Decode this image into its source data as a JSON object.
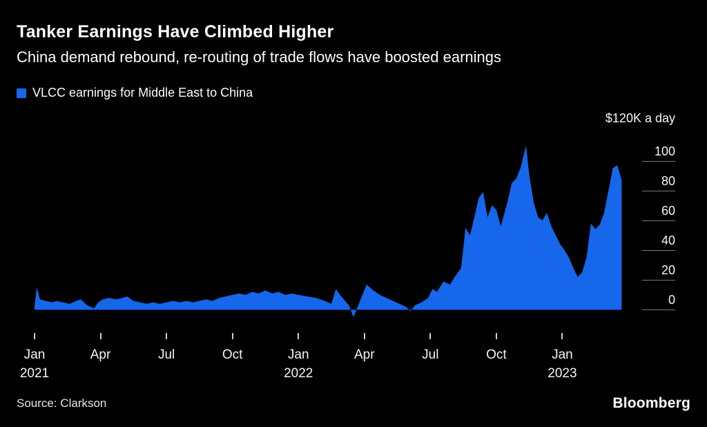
{
  "colors": {
    "background": "#000000",
    "accent": "#1667EB",
    "text": "#FFFFFF",
    "axis_text": "#F5F5F5",
    "grid": "#7A7A7A"
  },
  "header": {
    "title": "Tanker Earnings Have Climbed Higher",
    "subtitle": "China demand rebound, re-routing of trade flows have boosted earnings"
  },
  "legend": {
    "label": "VLCC earnings for Middle East to China"
  },
  "footer": {
    "source": "Source: Clarkson",
    "brand": "Bloomberg"
  },
  "chart_data": {
    "type": "area",
    "title": "Tanker Earnings Have Climbed Higher",
    "subtitle": "China demand rebound, re-routing of trade flows have boosted earnings",
    "series_name": "VLCC earnings for Middle East to China",
    "unit": "thousand USD per day",
    "y_axis": {
      "top_label": "$120K a day",
      "ticks": [
        100,
        80,
        60,
        40,
        20,
        0
      ],
      "range": [
        -10,
        122
      ],
      "grid": "right-segments-only"
    },
    "x_axis": {
      "range": [
        0,
        27
      ],
      "tick_months": [
        0,
        3,
        6,
        9,
        12,
        15,
        18,
        21,
        24
      ],
      "tick_labels": [
        [
          "Jan",
          "2021"
        ],
        [
          "Apr"
        ],
        [
          "Jul"
        ],
        [
          "Oct"
        ],
        [
          "Jan",
          "2022"
        ],
        [
          "Apr"
        ],
        [
          "Jul"
        ],
        [
          "Oct"
        ],
        [
          "Jan",
          "2023"
        ]
      ]
    },
    "points_note": "t = months since Jan 2021, v = VLCC earnings in $K/day",
    "points": [
      [
        0,
        2
      ],
      [
        0.1,
        15
      ],
      [
        0.25,
        7
      ],
      [
        0.5,
        6
      ],
      [
        0.8,
        5
      ],
      [
        1,
        6
      ],
      [
        1.3,
        5
      ],
      [
        1.6,
        4
      ],
      [
        1.9,
        6
      ],
      [
        2.1,
        7
      ],
      [
        2.4,
        3
      ],
      [
        2.7,
        1
      ],
      [
        2.9,
        5
      ],
      [
        3.1,
        7
      ],
      [
        3.4,
        8
      ],
      [
        3.7,
        7
      ],
      [
        4,
        8
      ],
      [
        4.2,
        9
      ],
      [
        4.5,
        6
      ],
      [
        4.8,
        5
      ],
      [
        5.1,
        4
      ],
      [
        5.4,
        5
      ],
      [
        5.7,
        4
      ],
      [
        6,
        5
      ],
      [
        6.3,
        6
      ],
      [
        6.6,
        5
      ],
      [
        6.9,
        6
      ],
      [
        7.2,
        5
      ],
      [
        7.5,
        6
      ],
      [
        7.8,
        7
      ],
      [
        8.1,
        6
      ],
      [
        8.4,
        8
      ],
      [
        8.7,
        9
      ],
      [
        9,
        10
      ],
      [
        9.3,
        11
      ],
      [
        9.6,
        10
      ],
      [
        9.9,
        12
      ],
      [
        10.2,
        11
      ],
      [
        10.5,
        13
      ],
      [
        10.8,
        11
      ],
      [
        11.1,
        12
      ],
      [
        11.4,
        10
      ],
      [
        11.7,
        11
      ],
      [
        12,
        10
      ],
      [
        12.4,
        9
      ],
      [
        12.8,
        8
      ],
      [
        13.2,
        6
      ],
      [
        13.5,
        4
      ],
      [
        13.7,
        14
      ],
      [
        14,
        8
      ],
      [
        14.3,
        3
      ],
      [
        14.5,
        -5
      ],
      [
        14.8,
        6
      ],
      [
        15.1,
        17
      ],
      [
        15.4,
        13
      ],
      [
        15.7,
        10
      ],
      [
        16,
        8
      ],
      [
        16.3,
        6
      ],
      [
        16.6,
        4
      ],
      [
        16.9,
        2
      ],
      [
        17.1,
        -1
      ],
      [
        17.3,
        3
      ],
      [
        17.6,
        5
      ],
      [
        17.9,
        8
      ],
      [
        18.1,
        14
      ],
      [
        18.3,
        12
      ],
      [
        18.6,
        19
      ],
      [
        18.9,
        17
      ],
      [
        19.1,
        22
      ],
      [
        19.4,
        28
      ],
      [
        19.6,
        55
      ],
      [
        19.8,
        50
      ],
      [
        20,
        62
      ],
      [
        20.2,
        75
      ],
      [
        20.4,
        79
      ],
      [
        20.6,
        62
      ],
      [
        20.8,
        70
      ],
      [
        21,
        67
      ],
      [
        21.2,
        56
      ],
      [
        21.5,
        72
      ],
      [
        21.7,
        85
      ],
      [
        21.9,
        88
      ],
      [
        22.1,
        95
      ],
      [
        22.35,
        110
      ],
      [
        22.5,
        90
      ],
      [
        22.7,
        72
      ],
      [
        22.9,
        62
      ],
      [
        23.1,
        60
      ],
      [
        23.3,
        65
      ],
      [
        23.5,
        56
      ],
      [
        23.7,
        50
      ],
      [
        23.9,
        44
      ],
      [
        24.1,
        40
      ],
      [
        24.3,
        35
      ],
      [
        24.5,
        28
      ],
      [
        24.7,
        22
      ],
      [
        24.9,
        25
      ],
      [
        25.1,
        35
      ],
      [
        25.3,
        58
      ],
      [
        25.5,
        54
      ],
      [
        25.7,
        57
      ],
      [
        25.9,
        65
      ],
      [
        26.1,
        80
      ],
      [
        26.3,
        95
      ],
      [
        26.5,
        97
      ],
      [
        26.7,
        87
      ]
    ]
  }
}
